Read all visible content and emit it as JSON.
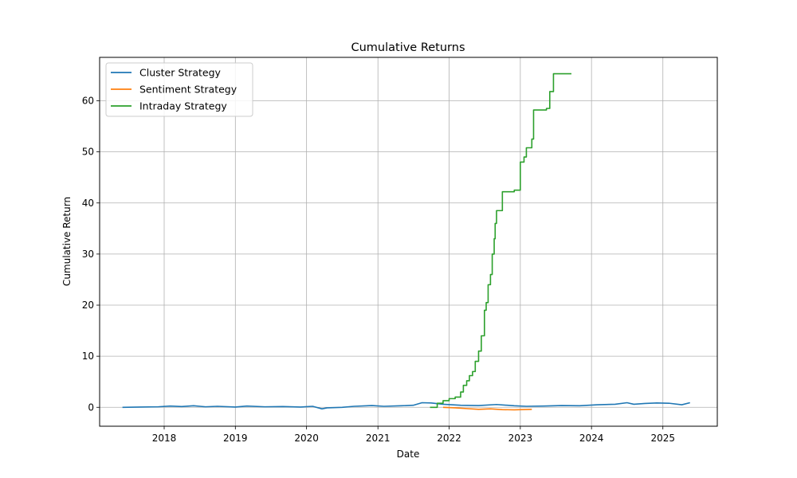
{
  "chart_data": {
    "type": "line",
    "title": "Cumulative Returns",
    "xlabel": "Date",
    "ylabel": "Cumulative Return",
    "x_type": "date",
    "xlim": [
      "2017-02-04",
      "2025-10-07"
    ],
    "ylim": [
      -3.7,
      68.5
    ],
    "x_ticks": [
      "2018-01-01",
      "2019-01-01",
      "2020-01-01",
      "2021-01-01",
      "2022-01-01",
      "2023-01-01",
      "2024-01-01",
      "2025-01-01"
    ],
    "x_tick_labels": [
      "2018",
      "2019",
      "2020",
      "2021",
      "2022",
      "2023",
      "2024",
      "2025"
    ],
    "y_ticks": [
      0,
      10,
      20,
      30,
      40,
      50,
      60
    ],
    "y_tick_labels": [
      "0",
      "10",
      "20",
      "30",
      "40",
      "50",
      "60"
    ],
    "grid": true,
    "legend_position": "upper-left",
    "series": [
      {
        "name": "Cluster Strategy",
        "color": "#1f77b4",
        "points": [
          [
            "2017-06-01",
            0.0
          ],
          [
            "2017-09-01",
            0.05
          ],
          [
            "2017-12-01",
            0.1
          ],
          [
            "2018-02-01",
            0.25
          ],
          [
            "2018-04-01",
            0.15
          ],
          [
            "2018-06-01",
            0.3
          ],
          [
            "2018-08-01",
            0.1
          ],
          [
            "2018-10-01",
            0.2
          ],
          [
            "2019-01-01",
            0.05
          ],
          [
            "2019-03-01",
            0.25
          ],
          [
            "2019-06-01",
            0.1
          ],
          [
            "2019-09-01",
            0.15
          ],
          [
            "2019-12-01",
            0.05
          ],
          [
            "2020-02-01",
            0.2
          ],
          [
            "2020-03-20",
            -0.3
          ],
          [
            "2020-04-15",
            -0.1
          ],
          [
            "2020-07-01",
            0.0
          ],
          [
            "2020-09-01",
            0.2
          ],
          [
            "2020-12-01",
            0.35
          ],
          [
            "2021-02-01",
            0.2
          ],
          [
            "2021-05-01",
            0.3
          ],
          [
            "2021-07-01",
            0.4
          ],
          [
            "2021-08-15",
            0.9
          ],
          [
            "2021-10-01",
            0.85
          ],
          [
            "2021-12-01",
            0.6
          ],
          [
            "2022-03-01",
            0.4
          ],
          [
            "2022-06-01",
            0.35
          ],
          [
            "2022-09-01",
            0.55
          ],
          [
            "2022-12-01",
            0.3
          ],
          [
            "2023-02-01",
            0.2
          ],
          [
            "2023-05-01",
            0.25
          ],
          [
            "2023-08-01",
            0.35
          ],
          [
            "2023-11-01",
            0.3
          ],
          [
            "2024-02-01",
            0.5
          ],
          [
            "2024-05-01",
            0.6
          ],
          [
            "2024-07-01",
            0.9
          ],
          [
            "2024-08-05",
            0.6
          ],
          [
            "2024-10-01",
            0.75
          ],
          [
            "2024-12-01",
            0.85
          ],
          [
            "2025-02-01",
            0.8
          ],
          [
            "2025-04-08",
            0.5
          ],
          [
            "2025-05-20",
            0.9
          ]
        ]
      },
      {
        "name": "Sentiment Strategy",
        "color": "#ff7f0e",
        "points": [
          [
            "2021-12-01",
            0.0
          ],
          [
            "2022-02-01",
            -0.1
          ],
          [
            "2022-04-01",
            -0.25
          ],
          [
            "2022-06-01",
            -0.4
          ],
          [
            "2022-08-01",
            -0.3
          ],
          [
            "2022-10-01",
            -0.45
          ],
          [
            "2022-12-01",
            -0.5
          ],
          [
            "2023-03-01",
            -0.4
          ]
        ]
      },
      {
        "name": "Intraday Strategy",
        "color": "#2ca02c",
        "step": true,
        "points": [
          [
            "2021-09-25",
            0.0
          ],
          [
            "2021-11-01",
            0.8
          ],
          [
            "2021-12-01",
            1.3
          ],
          [
            "2022-01-01",
            1.7
          ],
          [
            "2022-02-01",
            2.0
          ],
          [
            "2022-03-01",
            3.0
          ],
          [
            "2022-03-15",
            4.3
          ],
          [
            "2022-04-01",
            5.2
          ],
          [
            "2022-04-15",
            6.2
          ],
          [
            "2022-05-01",
            7.0
          ],
          [
            "2022-05-15",
            9.0
          ],
          [
            "2022-06-01",
            11.0
          ],
          [
            "2022-06-15",
            14.0
          ],
          [
            "2022-07-01",
            19.0
          ],
          [
            "2022-07-10",
            20.5
          ],
          [
            "2022-07-20",
            24.0
          ],
          [
            "2022-08-01",
            26.0
          ],
          [
            "2022-08-10",
            30.0
          ],
          [
            "2022-08-20",
            33.0
          ],
          [
            "2022-08-25",
            36.0
          ],
          [
            "2022-09-01",
            38.5
          ],
          [
            "2022-10-01",
            42.2
          ],
          [
            "2022-12-01",
            42.5
          ],
          [
            "2023-01-01",
            48.0
          ],
          [
            "2023-01-20",
            49.0
          ],
          [
            "2023-02-01",
            50.8
          ],
          [
            "2023-03-01",
            52.5
          ],
          [
            "2023-03-10",
            58.2
          ],
          [
            "2023-05-15",
            58.5
          ],
          [
            "2023-06-01",
            61.8
          ],
          [
            "2023-06-20",
            65.3
          ],
          [
            "2023-09-20",
            65.3
          ]
        ]
      }
    ]
  }
}
